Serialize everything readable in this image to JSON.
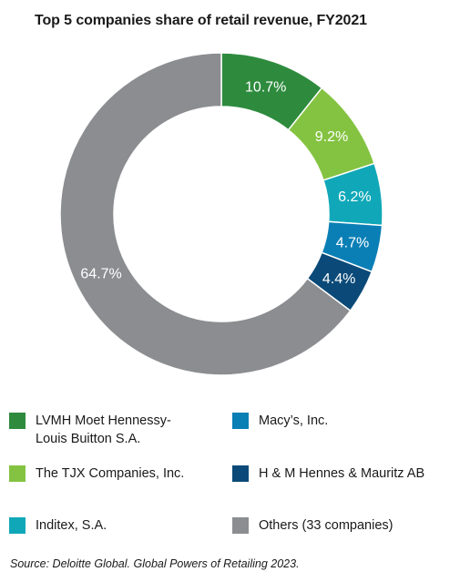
{
  "title": "Top 5 companies share of retail revenue, FY2021",
  "source": "Source: Deloitte Global. Global Powers of Retailing 2023.",
  "chart_data": {
    "type": "pie",
    "title": "Top 5 companies share of retail revenue, FY2021",
    "donut": true,
    "slices": [
      {
        "name": "LVMH Moet Hennessy-Louis Buitton S.A.",
        "value": 10.7,
        "label": "10.7%",
        "color": "#2e8b3e"
      },
      {
        "name": "The TJX Companies, Inc.",
        "value": 9.2,
        "label": "9.2%",
        "color": "#84c341"
      },
      {
        "name": "Inditex, S.A.",
        "value": 6.2,
        "label": "6.2%",
        "color": "#10a8b8"
      },
      {
        "name": "Macy’s, Inc.",
        "value": 4.7,
        "label": "4.7%",
        "color": "#0a7fb6"
      },
      {
        "name": "H & M Hennes & Mauritz AB",
        "value": 4.4,
        "label": "4.4%",
        "color": "#0b4a78"
      },
      {
        "name": "Others (33 companies)",
        "value": 64.7,
        "label": "64.7%",
        "color": "#8b8d90"
      }
    ]
  },
  "legend": [
    {
      "label_line1": "LVMH Moet Hennessy-",
      "label_line2": "Louis Buitton S.A.",
      "color": "#2e8b3e"
    },
    {
      "label_line1": "Macy’s, Inc.",
      "label_line2": "",
      "color": "#0a7fb6"
    },
    {
      "label_line1": "The TJX Companies, Inc.",
      "label_line2": "",
      "color": "#84c341"
    },
    {
      "label_line1": "H & M Hennes & Mauritz AB",
      "label_line2": "",
      "color": "#0b4a78"
    },
    {
      "label_line1": "Inditex, S.A.",
      "label_line2": "",
      "color": "#10a8b8"
    },
    {
      "label_line1": "Others (33 companies)",
      "label_line2": "",
      "color": "#8b8d90"
    }
  ]
}
